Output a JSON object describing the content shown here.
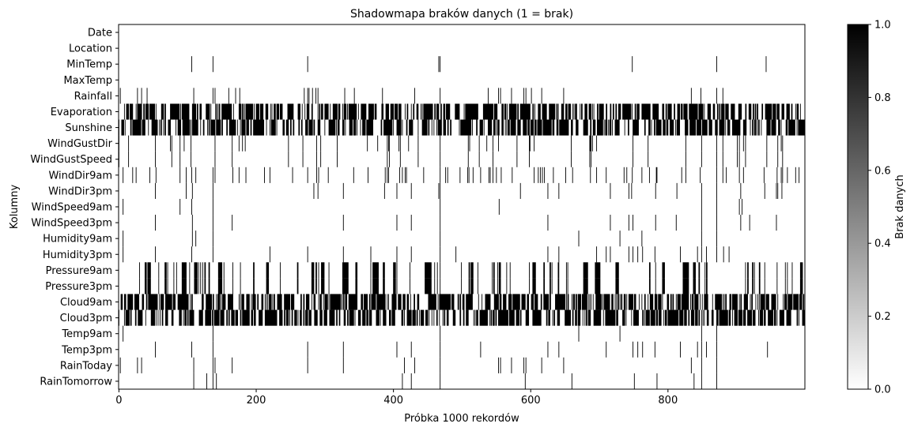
{
  "chart_data": {
    "type": "heatmap",
    "title": "Shadowmapa braków danych (1 = brak)",
    "xlabel": "Próbka 1000 rekordów",
    "ylabel": "Kolumny",
    "xlim": [
      0,
      1000
    ],
    "x_ticks": [
      0,
      200,
      400,
      600,
      800
    ],
    "rows": [
      "Date",
      "Location",
      "MinTemp",
      "MaxTemp",
      "Rainfall",
      "Evaporation",
      "Sunshine",
      "WindGustDir",
      "WindGustSpeed",
      "WindDir9am",
      "WindDir3pm",
      "WindSpeed9am",
      "WindSpeed3pm",
      "Humidity9am",
      "Humidity3pm",
      "Pressure9am",
      "Pressure3pm",
      "Cloud9am",
      "Cloud3pm",
      "Temp9am",
      "Temp3pm",
      "RainToday",
      "RainTomorrow"
    ],
    "colorbar": {
      "label": "Brak danych",
      "range": [
        0,
        1
      ],
      "ticks": [
        "0.0",
        "0.2",
        "0.4",
        "0.6",
        "0.8",
        "1.0"
      ],
      "low_color": "#ffffff",
      "high_color": "#000000"
    },
    "missing_indices": {
      "Date": [],
      "Location": [],
      "MinTemp": [
        106,
        137,
        275,
        466,
        468,
        748,
        871,
        943
      ],
      "MaxTemp": [],
      "Rainfall": [
        2,
        27,
        33,
        41,
        109,
        137,
        140,
        160,
        170,
        176,
        270,
        275,
        277,
        282,
        287,
        290,
        329,
        343,
        384,
        431,
        468,
        538,
        553,
        556,
        572,
        590,
        593,
        601,
        616,
        648,
        834,
        848,
        871,
        880
      ],
      "Evaporation": {
        "seed": 5,
        "rate": 0.58,
        "rows_shared": false,
        "max_index": 999
      },
      "Sunshine": {
        "seed": 6,
        "rate": 0.55,
        "rows_shared": false,
        "max_index": 999
      },
      "WindGustDir": [
        0,
        14,
        53,
        75,
        77,
        89,
        95,
        105,
        140,
        165,
        175,
        180,
        184,
        247,
        268,
        288,
        294,
        318,
        362,
        377,
        391,
        393,
        394,
        408,
        410,
        422,
        436,
        468,
        509,
        511,
        525,
        536,
        545,
        553,
        580,
        598,
        599,
        605,
        659,
        686,
        687,
        688,
        690,
        696,
        749,
        771,
        826,
        849,
        871,
        880,
        901,
        904,
        910,
        913,
        944,
        960,
        965,
        967
      ],
      "WindGustSpeed": [
        0,
        14,
        53,
        77,
        89,
        105,
        140,
        165,
        247,
        268,
        288,
        294,
        318,
        391,
        394,
        410,
        436,
        468,
        509,
        525,
        545,
        580,
        598,
        659,
        686,
        688,
        749,
        771,
        826,
        849,
        871,
        880,
        901,
        904,
        913,
        944,
        960,
        967
      ],
      "WindDir9am": [
        6,
        20,
        25,
        45,
        54,
        89,
        98,
        106,
        112,
        137,
        140,
        166,
        175,
        185,
        212,
        220,
        253,
        275,
        288,
        291,
        305,
        342,
        363,
        388,
        391,
        393,
        409,
        413,
        417,
        419,
        444,
        468,
        476,
        479,
        497,
        508,
        510,
        516,
        527,
        539,
        541,
        545,
        550,
        557,
        573,
        605,
        611,
        614,
        617,
        620,
        633,
        651,
        661,
        687,
        696,
        710,
        736,
        740,
        748,
        762,
        773,
        783,
        784,
        820,
        826,
        847,
        871,
        880,
        885,
        904,
        910,
        940,
        959,
        965,
        967,
        974,
        986,
        991
      ],
      "WindDir3pm": [
        53,
        98,
        107,
        137,
        284,
        290,
        327,
        387,
        405,
        426,
        466,
        468,
        585,
        625,
        641,
        716,
        747,
        743,
        782,
        813,
        849,
        871,
        906,
        941,
        958,
        960,
        966
      ],
      "WindSpeed9am": [
        6,
        89,
        106,
        137,
        468,
        554,
        849,
        871,
        904,
        908
      ],
      "WindSpeed3pm": [
        53,
        107,
        137,
        165,
        327,
        405,
        426,
        468,
        625,
        716,
        743,
        749,
        782,
        812,
        849,
        871,
        906,
        919,
        958
      ],
      "Humidity9am": [
        6,
        107,
        112,
        137,
        468,
        670,
        730,
        762,
        849,
        871
      ],
      "Humidity3pm": [
        6,
        53,
        106,
        137,
        220,
        275,
        327,
        367,
        405,
        426,
        468,
        491,
        625,
        641,
        696,
        710,
        716,
        743,
        749,
        756,
        763,
        781,
        818,
        843,
        849,
        856,
        871,
        881,
        889
      ],
      "Pressure9am": {
        "seed": 17,
        "rate": 0.14,
        "rows_shared": true,
        "max_index": 999
      },
      "Pressure3pm": {
        "seed": 17,
        "rate": 0.14,
        "rows_shared": true,
        "max_index": 999
      },
      "Cloud9am": {
        "seed": 19,
        "rate": 0.55,
        "rows_shared": false,
        "max_index": 999
      },
      "Cloud3pm": {
        "seed": 20,
        "rate": 0.57,
        "rows_shared": false,
        "max_index": 999
      },
      "Temp9am": [
        6,
        137,
        468,
        670,
        730,
        849,
        871
      ],
      "Temp3pm": [
        53,
        106,
        137,
        275,
        327,
        405,
        426,
        468,
        527,
        625,
        641,
        710,
        749,
        756,
        763,
        781,
        818,
        843,
        849,
        856,
        871,
        945
      ],
      "RainToday": [
        2,
        27,
        33,
        109,
        137,
        140,
        165,
        275,
        327,
        416,
        431,
        468,
        553,
        556,
        572,
        590,
        593,
        616,
        648,
        834,
        849,
        871
      ],
      "RainTomorrow": [
        109,
        128,
        137,
        142,
        413,
        426,
        468,
        592,
        660,
        751,
        784,
        838,
        849,
        871
      ]
    }
  }
}
